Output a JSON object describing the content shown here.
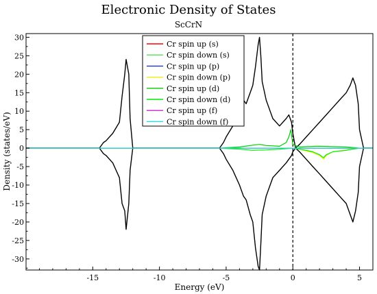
{
  "chart_data": {
    "type": "line",
    "title": "Electronic Density of States",
    "subtitle": "ScCrN",
    "xlabel": "Energy (eV)",
    "ylabel": "Density (states/eV)",
    "xlim": [
      -20,
      6
    ],
    "ylim": [
      -33,
      31
    ],
    "x_ticks": [
      -15,
      -10,
      -5,
      0,
      5
    ],
    "y_ticks": [
      -30,
      -25,
      -20,
      -15,
      -10,
      -5,
      0,
      5,
      10,
      15,
      20,
      25,
      30
    ],
    "grid": false,
    "fermi_line_x": 0,
    "legend_position": "top-center",
    "series": [
      {
        "name": "",
        "color": "#000000",
        "x": [
          -20,
          -14.5,
          -14.2,
          -14.0,
          -13.5,
          -13.0,
          -12.8,
          -12.6,
          -12.5,
          -12.3,
          -12.2,
          -12.0,
          -6.0,
          -5.5,
          -5.2,
          -5.0,
          -4.5,
          -4.0,
          -3.7,
          -3.5,
          -3.2,
          -3.0,
          -2.8,
          -2.6,
          -2.5,
          -2.4,
          -2.3,
          -2.0,
          -1.7,
          -1.5,
          -1.0,
          -0.5,
          -0.3,
          -0.1,
          0.0,
          0.2,
          0.5,
          1.0,
          1.5,
          2.0,
          2.5,
          3.0,
          3.5,
          4.0,
          4.3,
          4.5,
          4.7,
          4.9,
          5.0,
          5.3,
          5.5,
          6.0
        ],
        "y": [
          0,
          0,
          1.5,
          2,
          4,
          7,
          14,
          20,
          24,
          20,
          8,
          0,
          0,
          0,
          1.5,
          3,
          6,
          10,
          13,
          12,
          15,
          17,
          22,
          28,
          30,
          25,
          18,
          13,
          10,
          8,
          6,
          8,
          9,
          7,
          4,
          0,
          1,
          3,
          5,
          7,
          9,
          11,
          13,
          15,
          17,
          19,
          17,
          12,
          5,
          0,
          0,
          0
        ]
      },
      {
        "name": "",
        "color": "#000000",
        "x": [
          -20,
          -14.5,
          -14.2,
          -14.0,
          -13.5,
          -13.0,
          -12.8,
          -12.6,
          -12.5,
          -12.3,
          -12.2,
          -12.0,
          -6.0,
          -5.5,
          -5.2,
          -5.0,
          -4.5,
          -4.0,
          -3.7,
          -3.5,
          -3.2,
          -3.0,
          -2.8,
          -2.6,
          -2.5,
          -2.4,
          -2.3,
          -2.0,
          -1.7,
          -1.5,
          -1.0,
          -0.5,
          -0.3,
          -0.1,
          0.0,
          0.2,
          0.5,
          1.0,
          1.5,
          2.0,
          2.5,
          3.0,
          3.5,
          4.0,
          4.3,
          4.5,
          4.7,
          4.9,
          5.0,
          5.3,
          5.5,
          6.0
        ],
        "y": [
          0,
          0,
          -1.5,
          -2,
          -4,
          -8,
          -15,
          -17,
          -22,
          -15,
          -6,
          0,
          0,
          0,
          -1.5,
          -3,
          -6,
          -10,
          -13,
          -14,
          -18,
          -20,
          -27,
          -32,
          -33,
          -26,
          -18,
          -13,
          -10,
          -8,
          -6,
          -4,
          -3,
          -2,
          -1,
          0,
          -1,
          -3,
          -5,
          -7,
          -9,
          -11,
          -13,
          -15,
          -18,
          -20,
          -17,
          -12,
          -5,
          0,
          0,
          0
        ]
      },
      {
        "name": "Cr spin up (s)",
        "color": "#ff0000",
        "x": [
          -20,
          6
        ],
        "y": [
          0,
          0
        ]
      },
      {
        "name": "Cr spin down (s)",
        "color": "#55dd55",
        "x": [
          -20,
          6
        ],
        "y": [
          0,
          0
        ]
      },
      {
        "name": "Cr spin up (p)",
        "color": "#2233cc",
        "x": [
          -20,
          6
        ],
        "y": [
          0,
          0
        ]
      },
      {
        "name": "Cr spin down (p)",
        "color": "#eeee00",
        "x": [
          -20,
          -1.0,
          0.0,
          0.5,
          1.0,
          1.5,
          2.0,
          2.3,
          2.5,
          3.0,
          4.0,
          5.0,
          6.0
        ],
        "y": [
          0,
          0,
          0,
          -0.3,
          -0.8,
          -1.2,
          -2.0,
          -3.0,
          -2.0,
          -1.0,
          -0.5,
          0,
          0
        ]
      },
      {
        "name": "Cr spin up (d)",
        "color": "#00cc00",
        "x": [
          -20,
          -5.5,
          -4.0,
          -3.0,
          -2.5,
          -2.0,
          -1.0,
          -0.5,
          -0.3,
          -0.15,
          0.0,
          0.5,
          1.0,
          2.0,
          3.0,
          4.0,
          5.0,
          6.0
        ],
        "y": [
          0,
          0,
          0.3,
          0.8,
          1.0,
          0.7,
          0.5,
          1.5,
          3.0,
          5.0,
          1.0,
          0.3,
          0.4,
          0.5,
          0.4,
          0.3,
          0,
          0
        ]
      },
      {
        "name": "Cr spin down (d)",
        "color": "#00ee00",
        "x": [
          -20,
          -5.5,
          -4.0,
          -3.0,
          -2.0,
          -1.0,
          0.0,
          0.5,
          1.0,
          1.5,
          2.0,
          2.3,
          2.5,
          3.0,
          4.0,
          5.0,
          6.0
        ],
        "y": [
          0,
          0,
          -0.3,
          -0.6,
          -0.5,
          -0.3,
          0,
          -0.3,
          -0.6,
          -1.0,
          -1.8,
          -2.6,
          -1.8,
          -1.0,
          -0.6,
          0,
          0
        ]
      },
      {
        "name": "Cr spin up (f)",
        "color": "#cc22cc",
        "x": [
          -20,
          6
        ],
        "y": [
          0,
          0
        ]
      },
      {
        "name": "Cr spin down (f)",
        "color": "#22dddd",
        "x": [
          -20,
          -12.5,
          -12.0,
          6
        ],
        "y": [
          0,
          0,
          0,
          0
        ]
      }
    ]
  }
}
